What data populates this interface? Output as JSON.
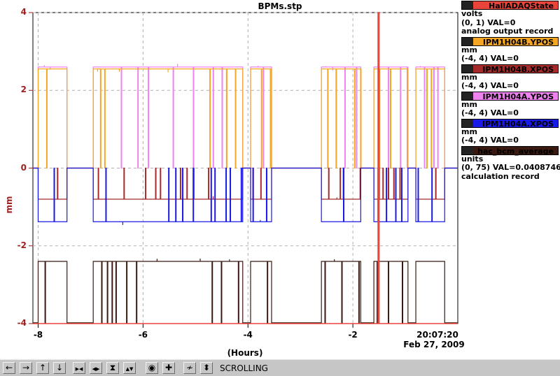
{
  "plot": {
    "title": "BPMs.stp",
    "y_axis_label": "mm",
    "x_axis_label": "(Hours)",
    "current_time": "20:07:20",
    "current_date": "Feb 27, 2009"
  },
  "legend": [
    {
      "pv": "HallADAQState",
      "color": "#e8443a",
      "lines": [
        "volts",
        "(0, 1) VAL=0",
        "analog output record"
      ]
    },
    {
      "pv": "IPM1H04B.YPOS",
      "color": "#f5a623",
      "lines": [
        "mm",
        "(-4, 4) VAL=0"
      ]
    },
    {
      "pv": "IPM1H04B.XPOS",
      "color": "#a52a2a",
      "lines": [
        "mm",
        "(-4, 4) VAL=0"
      ]
    },
    {
      "pv": "IPM1H04A.YPOS",
      "color": "#ee82ee",
      "lines": [
        "mm",
        "(-4, 4) VAL=0"
      ]
    },
    {
      "pv": "IPM1H04A.XPOS",
      "color": "#1a1ae6",
      "lines": [
        "mm",
        "(-4, 4) VAL=0"
      ]
    },
    {
      "pv": "hac_bcm_average",
      "color": "#3a1a10",
      "lines": [
        "units",
        "(0, 75) VAL=0.0408746",
        "calculation record"
      ]
    }
  ],
  "toolbar": {
    "buttons": [
      {
        "name": "scroll-left-button",
        "glyph": "←"
      },
      {
        "name": "scroll-right-button",
        "glyph": "→"
      },
      {
        "name": "scroll-up-button",
        "glyph": "↑"
      },
      {
        "name": "scroll-down-button",
        "glyph": "↓"
      },
      {
        "name": "zoom-in-horizontal-button",
        "glyph": "▶◀"
      },
      {
        "name": "zoom-out-horizontal-button",
        "glyph": "◀▶"
      },
      {
        "name": "zoom-in-vertical-button",
        "glyph": "⧗"
      },
      {
        "name": "zoom-out-vertical-button",
        "glyph": "▲▼"
      },
      {
        "name": "stop-button",
        "glyph": "◉"
      },
      {
        "name": "add-button",
        "glyph": "✚"
      },
      {
        "name": "auto-scale-button",
        "glyph": "≁"
      },
      {
        "name": "scale-toggle-button",
        "glyph": "⬍"
      }
    ],
    "status": "SCROLLING"
  },
  "chart_data": {
    "type": "line",
    "title": "BPMs.stp",
    "xlabel": "(Hours)",
    "ylabel": "mm",
    "xlim": [
      -8.1,
      0
    ],
    "ylim": [
      -4,
      4
    ],
    "x_ticks": [
      "-8",
      "-6",
      "-4",
      "-2"
    ],
    "y_ticks": [
      "4",
      "2",
      "0",
      "-2",
      "-4"
    ],
    "grid": true,
    "segments_on": [
      [
        -8.0,
        -7.45
      ],
      [
        -6.95,
        -4.1
      ],
      [
        -3.95,
        -3.55
      ],
      [
        -2.6,
        -1.85
      ],
      [
        -1.6,
        -0.95
      ],
      [
        -0.8,
        -0.25
      ]
    ],
    "series": [
      {
        "name": "IPM1H04A.YPOS",
        "color": "#ee82ee",
        "on_value": 2.6,
        "off_value": 0
      },
      {
        "name": "IPM1H04B.YPOS",
        "color": "#f5a623",
        "on_value": 2.55,
        "off_value": 0
      },
      {
        "name": "IPM1H04B.XPOS",
        "color": "#a52a2a",
        "on_value": -0.8,
        "off_value": 0
      },
      {
        "name": "IPM1H04A.XPOS",
        "color": "#1a1ae6",
        "on_value": -1.38,
        "off_value": 0
      },
      {
        "name": "hac_bcm_average",
        "color": "#3a1a10",
        "on_value": -2.4,
        "off_value": -3.98
      },
      {
        "name": "HallADAQState",
        "color": "#e8443a",
        "on_value": 4,
        "off_value": -4,
        "on_x": [
          -1.52,
          -1.5
        ]
      }
    ]
  }
}
